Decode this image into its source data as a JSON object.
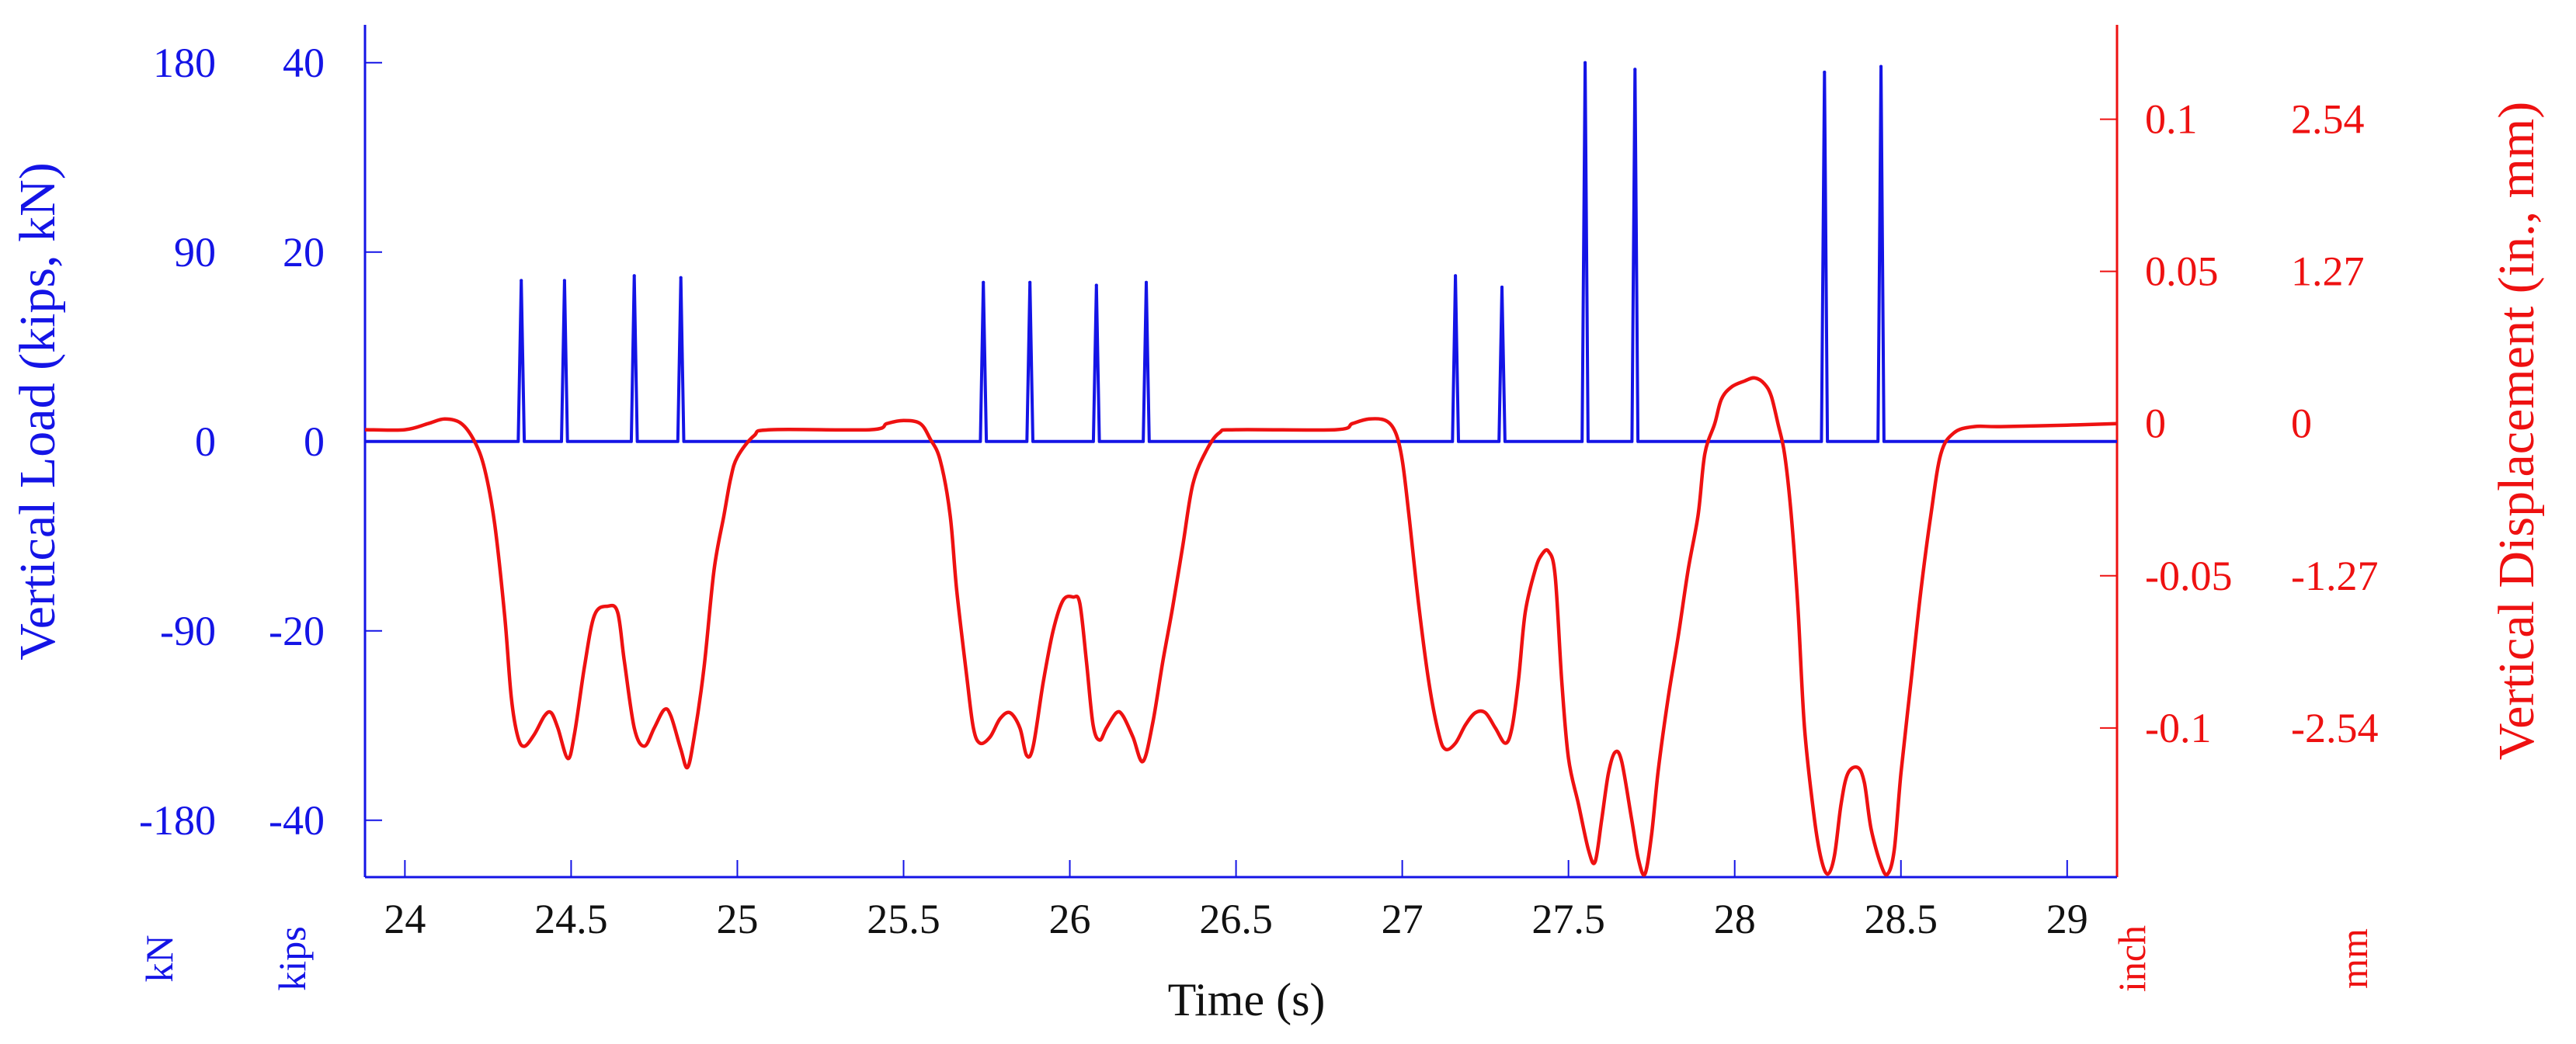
{
  "chart_data": {
    "type": "line",
    "title": "",
    "xlabel": "Time (s)",
    "xlim": [
      23.88,
      29.15
    ],
    "x_ticks": [
      "24",
      "24.5",
      "25",
      "25.5",
      "26",
      "26.5",
      "27",
      "27.5",
      "28",
      "28.5",
      "29"
    ],
    "y_left": {
      "label": "Vertical Load (kips, kN)",
      "ylim_kips": [
        -46,
        44
      ],
      "ticks_kips": [
        "40",
        "20",
        "0",
        "-20",
        "-40"
      ],
      "ticks_kN": [
        "180",
        "90",
        "0",
        "-90",
        "-180"
      ],
      "unit_kips": "kips",
      "unit_kN": "kN"
    },
    "y_right": {
      "label": "Vertical Displacement (in., mm)",
      "ylim_in": [
        -0.149,
        0.131
      ],
      "ticks_in": [
        "0.1",
        "0.05",
        "0",
        "-0.05",
        "-0.1"
      ],
      "ticks_mm": [
        "2.54",
        "1.27",
        "0",
        "-1.27",
        "-2.54"
      ],
      "unit_in": "inch",
      "unit_mm": "mm"
    },
    "series": [
      {
        "name": "Vertical Load",
        "axis": "left",
        "units": "kips",
        "color": "#1414e6",
        "baseline": 0,
        "peaks": [
          {
            "t": 24.35,
            "v": 17
          },
          {
            "t": 24.48,
            "v": 17
          },
          {
            "t": 24.69,
            "v": 17.5
          },
          {
            "t": 24.83,
            "v": 17.3
          },
          {
            "t": 25.74,
            "v": 16.8
          },
          {
            "t": 25.88,
            "v": 16.8
          },
          {
            "t": 26.08,
            "v": 16.5
          },
          {
            "t": 26.23,
            "v": 16.8
          },
          {
            "t": 27.16,
            "v": 17.5
          },
          {
            "t": 27.3,
            "v": 16.3
          },
          {
            "t": 27.55,
            "v": 40
          },
          {
            "t": 27.7,
            "v": 39.3
          },
          {
            "t": 28.27,
            "v": 39
          },
          {
            "t": 28.44,
            "v": 39.6
          }
        ]
      },
      {
        "name": "Vertical Displacement",
        "axis": "right",
        "units": "in.",
        "color": "#ee1111",
        "points": [
          [
            23.88,
            -0.002
          ],
          [
            24.0,
            -0.002
          ],
          [
            24.07,
            0.0
          ],
          [
            24.12,
            0.0015
          ],
          [
            24.17,
            0.0
          ],
          [
            24.21,
            -0.006
          ],
          [
            24.24,
            -0.015
          ],
          [
            24.27,
            -0.033
          ],
          [
            24.3,
            -0.063
          ],
          [
            24.32,
            -0.09
          ],
          [
            24.34,
            -0.103
          ],
          [
            24.36,
            -0.106
          ],
          [
            24.39,
            -0.102
          ],
          [
            24.42,
            -0.096
          ],
          [
            24.44,
            -0.095
          ],
          [
            24.46,
            -0.1
          ],
          [
            24.49,
            -0.11
          ],
          [
            24.51,
            -0.102
          ],
          [
            24.54,
            -0.08
          ],
          [
            24.57,
            -0.063
          ],
          [
            24.61,
            -0.06
          ],
          [
            24.64,
            -0.062
          ],
          [
            24.66,
            -0.078
          ],
          [
            24.69,
            -0.1
          ],
          [
            24.72,
            -0.106
          ],
          [
            24.75,
            -0.1
          ],
          [
            24.78,
            -0.094
          ],
          [
            24.8,
            -0.096
          ],
          [
            24.83,
            -0.107
          ],
          [
            24.85,
            -0.113
          ],
          [
            24.87,
            -0.103
          ],
          [
            24.9,
            -0.08
          ],
          [
            24.93,
            -0.048
          ],
          [
            24.96,
            -0.03
          ],
          [
            24.98,
            -0.018
          ],
          [
            25.0,
            -0.011
          ],
          [
            25.05,
            -0.004
          ],
          [
            25.1,
            -0.002
          ],
          [
            25.4,
            -0.002
          ],
          [
            25.45,
            0.0
          ],
          [
            25.5,
            0.001
          ],
          [
            25.55,
            0.0
          ],
          [
            25.58,
            -0.005
          ],
          [
            25.61,
            -0.012
          ],
          [
            25.64,
            -0.03
          ],
          [
            25.66,
            -0.055
          ],
          [
            25.69,
            -0.083
          ],
          [
            25.71,
            -0.1
          ],
          [
            25.73,
            -0.105
          ],
          [
            25.76,
            -0.103
          ],
          [
            25.79,
            -0.097
          ],
          [
            25.82,
            -0.095
          ],
          [
            25.85,
            -0.1
          ],
          [
            25.87,
            -0.109
          ],
          [
            25.89,
            -0.106
          ],
          [
            25.92,
            -0.085
          ],
          [
            25.95,
            -0.068
          ],
          [
            25.98,
            -0.058
          ],
          [
            26.01,
            -0.057
          ],
          [
            26.03,
            -0.059
          ],
          [
            26.05,
            -0.078
          ],
          [
            26.07,
            -0.099
          ],
          [
            26.09,
            -0.104
          ],
          [
            26.11,
            -0.1
          ],
          [
            26.14,
            -0.095
          ],
          [
            26.16,
            -0.096
          ],
          [
            26.19,
            -0.103
          ],
          [
            26.22,
            -0.111
          ],
          [
            26.25,
            -0.098
          ],
          [
            26.28,
            -0.078
          ],
          [
            26.31,
            -0.06
          ],
          [
            26.34,
            -0.04
          ],
          [
            26.37,
            -0.02
          ],
          [
            26.41,
            -0.009
          ],
          [
            26.45,
            -0.003
          ],
          [
            26.5,
            -0.002
          ],
          [
            26.8,
            -0.002
          ],
          [
            26.85,
            0.0
          ],
          [
            26.9,
            0.0015
          ],
          [
            26.95,
            0.001
          ],
          [
            26.98,
            -0.003
          ],
          [
            27.0,
            -0.012
          ],
          [
            27.02,
            -0.03
          ],
          [
            27.05,
            -0.06
          ],
          [
            27.08,
            -0.085
          ],
          [
            27.11,
            -0.102
          ],
          [
            27.13,
            -0.107
          ],
          [
            27.16,
            -0.105
          ],
          [
            27.19,
            -0.099
          ],
          [
            27.22,
            -0.095
          ],
          [
            27.25,
            -0.095
          ],
          [
            27.28,
            -0.1
          ],
          [
            27.31,
            -0.105
          ],
          [
            27.33,
            -0.1
          ],
          [
            27.35,
            -0.084
          ],
          [
            27.37,
            -0.062
          ],
          [
            27.4,
            -0.048
          ],
          [
            27.42,
            -0.043
          ],
          [
            27.44,
            -0.042
          ],
          [
            27.46,
            -0.05
          ],
          [
            27.48,
            -0.085
          ],
          [
            27.5,
            -0.11
          ],
          [
            27.53,
            -0.125
          ],
          [
            27.56,
            -0.14
          ],
          [
            27.58,
            -0.144
          ],
          [
            27.6,
            -0.13
          ],
          [
            27.62,
            -0.115
          ],
          [
            27.64,
            -0.108
          ],
          [
            27.66,
            -0.111
          ],
          [
            27.69,
            -0.13
          ],
          [
            27.71,
            -0.143
          ],
          [
            27.73,
            -0.148
          ],
          [
            27.75,
            -0.135
          ],
          [
            27.77,
            -0.114
          ],
          [
            27.8,
            -0.09
          ],
          [
            27.83,
            -0.07
          ],
          [
            27.86,
            -0.048
          ],
          [
            27.89,
            -0.03
          ],
          [
            27.91,
            -0.01
          ],
          [
            27.94,
            0.0
          ],
          [
            27.96,
            0.008
          ],
          [
            27.99,
            0.012
          ],
          [
            28.03,
            0.014
          ],
          [
            28.06,
            0.015
          ],
          [
            28.09,
            0.013
          ],
          [
            28.11,
            0.009
          ],
          [
            28.13,
            0.0
          ],
          [
            28.15,
            -0.01
          ],
          [
            28.17,
            -0.03
          ],
          [
            28.19,
            -0.06
          ],
          [
            28.21,
            -0.1
          ],
          [
            28.24,
            -0.13
          ],
          [
            28.26,
            -0.143
          ],
          [
            28.28,
            -0.148
          ],
          [
            28.3,
            -0.142
          ],
          [
            28.32,
            -0.125
          ],
          [
            28.34,
            -0.115
          ],
          [
            28.37,
            -0.113
          ],
          [
            28.39,
            -0.118
          ],
          [
            28.41,
            -0.133
          ],
          [
            28.44,
            -0.145
          ],
          [
            28.46,
            -0.148
          ],
          [
            28.48,
            -0.14
          ],
          [
            28.5,
            -0.115
          ],
          [
            28.53,
            -0.085
          ],
          [
            28.56,
            -0.055
          ],
          [
            28.59,
            -0.03
          ],
          [
            28.62,
            -0.01
          ],
          [
            28.66,
            -0.003
          ],
          [
            28.72,
            -0.001
          ],
          [
            28.8,
            -0.001
          ],
          [
            29.0,
            -0.0005
          ],
          [
            29.15,
            0.0
          ]
        ]
      }
    ]
  }
}
